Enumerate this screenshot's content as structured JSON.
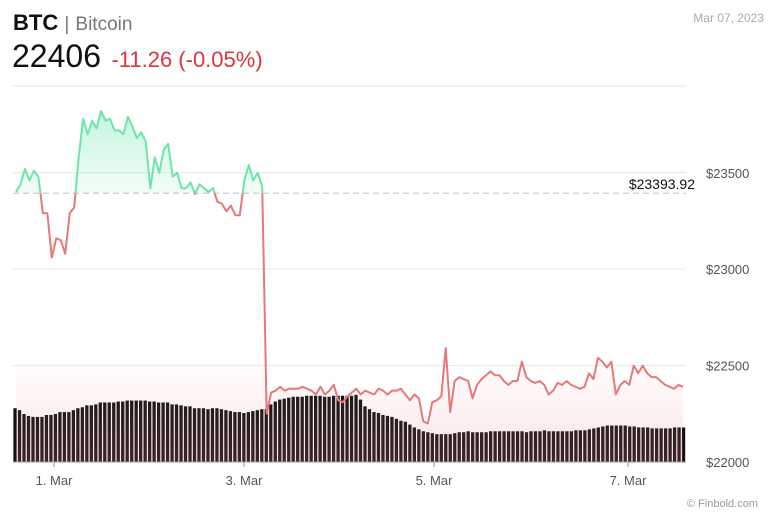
{
  "header": {
    "symbol": "BTC",
    "separator": "|",
    "name": "Bitcoin",
    "price": "22406",
    "change": "-11.26 (-0.05%)",
    "date": "Mar 07, 2023"
  },
  "credit": "© Finbold.com",
  "colors": {
    "up": "#6ee5a8",
    "down": "#e87878",
    "volume": "#111111",
    "grid": "#e6e6e6",
    "reference": "#cccccc"
  },
  "chart_data": {
    "type": "area",
    "x_ticks": [
      "1. Mar",
      "3. Mar",
      "5. Mar",
      "7. Mar"
    ],
    "y_ticks": [
      "$22000",
      "$22500",
      "$23000",
      "$23500"
    ],
    "y_tick_values": [
      22000,
      22500,
      23000,
      23500
    ],
    "ylim": [
      22000,
      23950
    ],
    "reference": {
      "value": 23393.92,
      "label": "$23393.92"
    },
    "series": [
      {
        "values": [
          23400,
          23440,
          23520,
          23460,
          23510,
          23480,
          23290,
          23290,
          23060,
          23160,
          23150,
          23080,
          23290,
          23320,
          23580,
          23780,
          23700,
          23770,
          23730,
          23820,
          23770,
          23780,
          23720,
          23720,
          23700,
          23790,
          23740,
          23680,
          23710,
          23660,
          23420,
          23580,
          23500,
          23620,
          23650,
          23480,
          23500,
          23420,
          23420,
          23450,
          23390,
          23440,
          23420,
          23400,
          23420,
          23350,
          23340,
          23300,
          23330,
          23280,
          23280,
          23460,
          23540,
          23460,
          23500,
          23430,
          22250,
          22360,
          22370,
          22390,
          22370,
          22380,
          22380,
          22380,
          22390,
          22380,
          22370,
          22350,
          22390,
          22350,
          22370,
          22400,
          22320,
          22310,
          22340,
          22360,
          22380,
          22350,
          22370,
          22360,
          22350,
          22380,
          22370,
          22350,
          22370,
          22370,
          22380,
          22350,
          22320,
          22350,
          22330,
          22210,
          22200,
          22310,
          22320,
          22340,
          22590,
          22260,
          22420,
          22440,
          22430,
          22420,
          22330,
          22400,
          22430,
          22450,
          22470,
          22450,
          22450,
          22420,
          22400,
          22420,
          22420,
          22520,
          22440,
          22420,
          22410,
          22420,
          22400,
          22350,
          22370,
          22410,
          22400,
          22420,
          22400,
          22390,
          22380,
          22390,
          22460,
          22430,
          22540,
          22520,
          22490,
          22520,
          22350,
          22400,
          22420,
          22400,
          22500,
          22460,
          22500,
          22460,
          22440,
          22440,
          22420,
          22400,
          22390,
          22380,
          22400,
          22390
        ]
      }
    ],
    "volume": [
      0.56,
      0.54,
      0.5,
      0.48,
      0.47,
      0.47,
      0.47,
      0.49,
      0.49,
      0.5,
      0.52,
      0.52,
      0.52,
      0.54,
      0.56,
      0.57,
      0.59,
      0.59,
      0.6,
      0.62,
      0.62,
      0.62,
      0.62,
      0.63,
      0.63,
      0.64,
      0.64,
      0.64,
      0.64,
      0.64,
      0.63,
      0.63,
      0.62,
      0.62,
      0.62,
      0.6,
      0.6,
      0.59,
      0.58,
      0.58,
      0.56,
      0.56,
      0.56,
      0.55,
      0.56,
      0.56,
      0.55,
      0.54,
      0.53,
      0.52,
      0.52,
      0.51,
      0.52,
      0.53,
      0.54,
      0.55,
      0.55,
      0.6,
      0.63,
      0.65,
      0.66,
      0.67,
      0.68,
      0.68,
      0.68,
      0.69,
      0.69,
      0.69,
      0.69,
      0.68,
      0.68,
      0.69,
      0.69,
      0.69,
      0.69,
      0.69,
      0.7,
      0.65,
      0.58,
      0.55,
      0.52,
      0.51,
      0.49,
      0.48,
      0.47,
      0.45,
      0.43,
      0.42,
      0.39,
      0.36,
      0.34,
      0.32,
      0.31,
      0.3,
      0.29,
      0.29,
      0.29,
      0.29,
      0.3,
      0.31,
      0.31,
      0.32,
      0.31,
      0.31,
      0.31,
      0.31,
      0.32,
      0.32,
      0.32,
      0.32,
      0.32,
      0.32,
      0.32,
      0.32,
      0.31,
      0.32,
      0.32,
      0.32,
      0.33,
      0.32,
      0.32,
      0.32,
      0.32,
      0.32,
      0.32,
      0.33,
      0.33,
      0.33,
      0.34,
      0.35,
      0.36,
      0.37,
      0.38,
      0.38,
      0.38,
      0.38,
      0.38,
      0.37,
      0.37,
      0.36,
      0.36,
      0.36,
      0.35,
      0.35,
      0.35,
      0.35,
      0.35,
      0.36,
      0.36,
      0.36
    ]
  }
}
